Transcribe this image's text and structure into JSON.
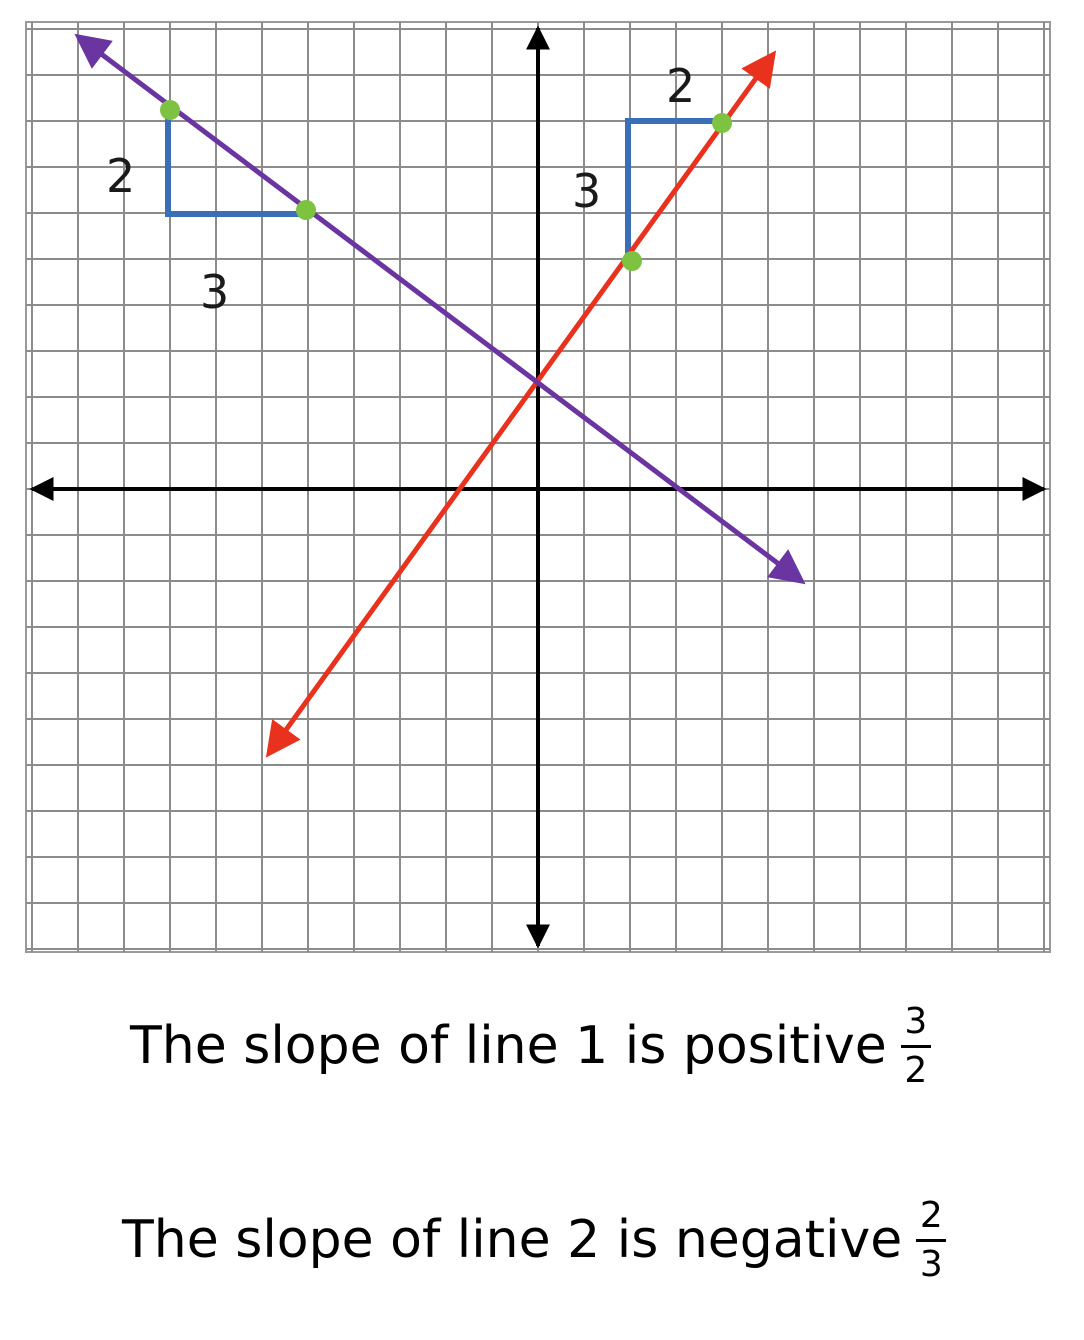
{
  "line1": {
    "color": "#e8321e",
    "rise_label": "3",
    "run_label": "2"
  },
  "line2": {
    "color": "#6a35a0",
    "rise_label": "2",
    "run_label": "3"
  },
  "triangle_color": "#3a6fb7",
  "point_color": "#7ec241",
  "statements": {
    "line1": {
      "text": "The slope of line 1 is positive",
      "numerator": "3",
      "denominator": "2"
    },
    "line2": {
      "text": "The slope of line 2 is negative",
      "numerator": "2",
      "denominator": "3"
    }
  }
}
